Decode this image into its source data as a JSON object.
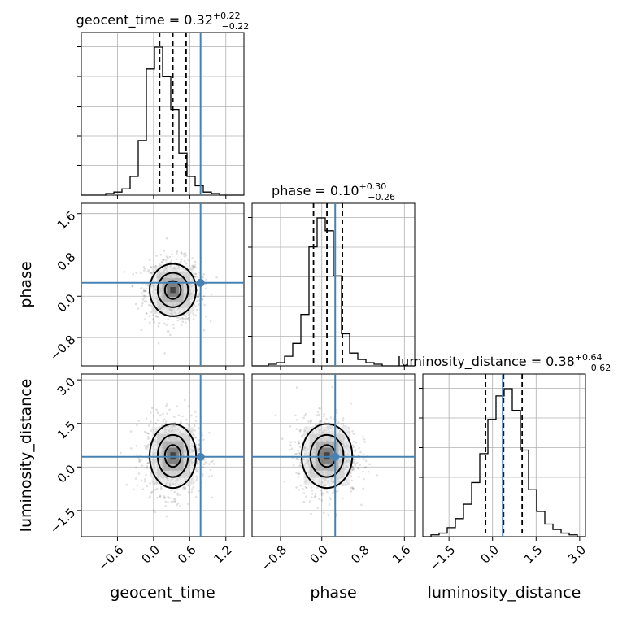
{
  "chart_data": {
    "type": "corner",
    "parameters": [
      {
        "key": "geocent_time",
        "label": "geocent_time",
        "range": [
          -1.2,
          1.5
        ],
        "ticks": [
          "−0.6",
          "0.0",
          "0.6",
          "1.2"
        ],
        "tick_values": [
          -0.6,
          0.0,
          0.6,
          1.2
        ],
        "median": 0.32,
        "minus": 0.22,
        "plus": 0.22,
        "truth": 0.78,
        "title_main": "geocent_time = 0.32",
        "title_sup": "+0.22",
        "title_sub": "−0.22",
        "hist_edges_start": -1.2,
        "hist_bin_width": 0.135,
        "hist_counts": [
          0,
          0,
          0,
          1,
          2,
          4,
          12,
          35,
          81,
          95,
          76,
          55,
          27,
          12,
          6,
          2,
          1,
          0,
          0,
          0
        ]
      },
      {
        "key": "phase",
        "label": "phase",
        "range": [
          -1.35,
          1.8
        ],
        "ticks": [
          "−0.8",
          "0.0",
          "0.8",
          "1.6"
        ],
        "tick_values": [
          -0.8,
          0.0,
          0.8,
          1.6
        ],
        "median": 0.1,
        "minus": 0.26,
        "plus": 0.3,
        "truth": 0.26,
        "title_main": "phase = 0.10",
        "title_sup": "+0.30",
        "title_sub": "−0.26",
        "hist_edges_start": -1.35,
        "hist_bin_width": 0.1575,
        "hist_counts": [
          0,
          0,
          1,
          2,
          6,
          14,
          32,
          74,
          92,
          84,
          56,
          20,
          8,
          4,
          2,
          1,
          0,
          0,
          0,
          0
        ]
      },
      {
        "key": "luminosity_distance",
        "label": "luminosity_distance",
        "range": [
          -2.4,
          3.2
        ],
        "ticks": [
          "−1.5",
          "0.0",
          "1.5",
          "3.0"
        ],
        "tick_values": [
          -1.5,
          0.0,
          1.5,
          3.0
        ],
        "median": 0.38,
        "minus": 0.62,
        "plus": 0.64,
        "truth": 0.35,
        "title_main": "luminosity_distance = 0.38",
        "title_sup": "+0.64",
        "title_sub": "−0.62",
        "hist_edges_start": -2.4,
        "hist_bin_width": 0.28,
        "hist_counts": [
          0,
          1,
          2,
          5,
          10,
          18,
          30,
          46,
          65,
          78,
          82,
          70,
          48,
          26,
          14,
          7,
          4,
          2,
          1,
          0
        ]
      }
    ],
    "pairs": [
      {
        "x": "geocent_time",
        "y": "phase",
        "center": [
          0.32,
          0.12
        ],
        "spread": [
          0.22,
          0.29
        ]
      },
      {
        "x": "geocent_time",
        "y": "luminosity_distance",
        "center": [
          0.32,
          0.38
        ],
        "spread": [
          0.22,
          0.63
        ]
      },
      {
        "x": "phase",
        "y": "luminosity_distance",
        "center": [
          0.1,
          0.38
        ],
        "spread": [
          0.28,
          0.63
        ]
      }
    ],
    "truth_color": "#4682b4",
    "grid": true
  }
}
